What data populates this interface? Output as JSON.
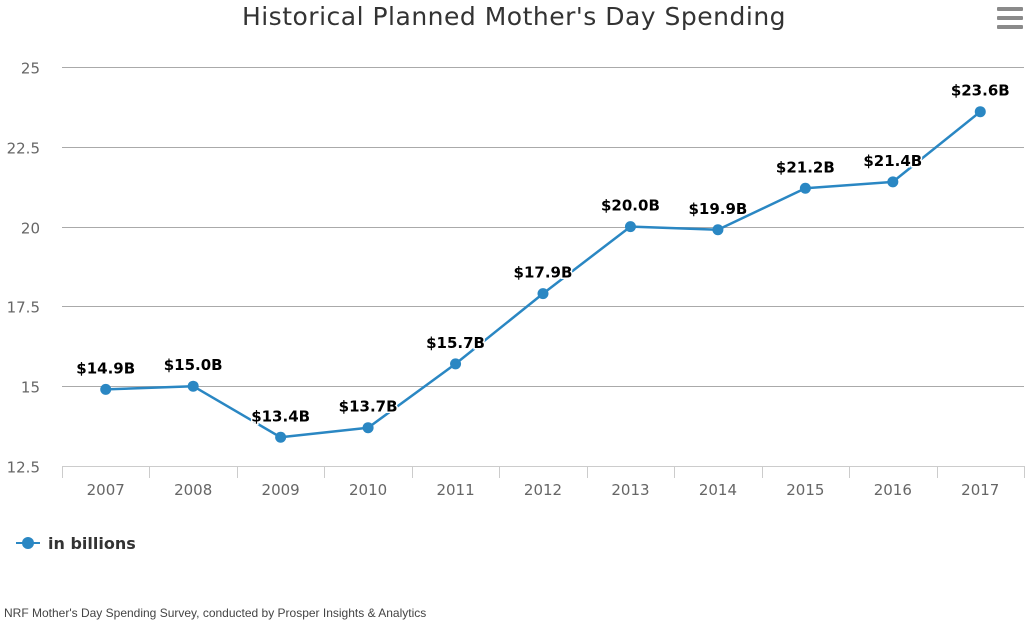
{
  "chart_data": {
    "type": "line",
    "title": "Historical Planned Mother's Day Spending",
    "categories": [
      "2007",
      "2008",
      "2009",
      "2010",
      "2011",
      "2012",
      "2013",
      "2014",
      "2015",
      "2016",
      "2017"
    ],
    "series": [
      {
        "name": "in billions",
        "values": [
          14.9,
          15.0,
          13.4,
          13.7,
          15.7,
          17.9,
          20.0,
          19.9,
          21.2,
          21.4,
          23.6
        ],
        "data_labels": [
          "$14.9B",
          "$15.0B",
          "$13.4B",
          "$13.7B",
          "$15.7B",
          "$17.9B",
          "$20.0B",
          "$19.9B",
          "$21.2B",
          "$21.4B",
          "$23.6B"
        ],
        "color": "#2a87c3"
      }
    ],
    "ylim": [
      12.5,
      25
    ],
    "yticks": [
      "12.5",
      "15",
      "17.5",
      "20",
      "22.5",
      "25"
    ],
    "xlabel": "",
    "ylabel": "",
    "grid": true,
    "legend": "bottom-left"
  },
  "credits": "NRF Mother's Day Spending Survey, conducted by Prosper Insights & Analytics",
  "menu": {
    "icon": "hamburger-menu-icon"
  },
  "colors": {
    "series": "#2a87c3",
    "grid": "#aaaaaa",
    "axis": "#cccccc",
    "text": "#333333",
    "tick_text": "#666666"
  }
}
